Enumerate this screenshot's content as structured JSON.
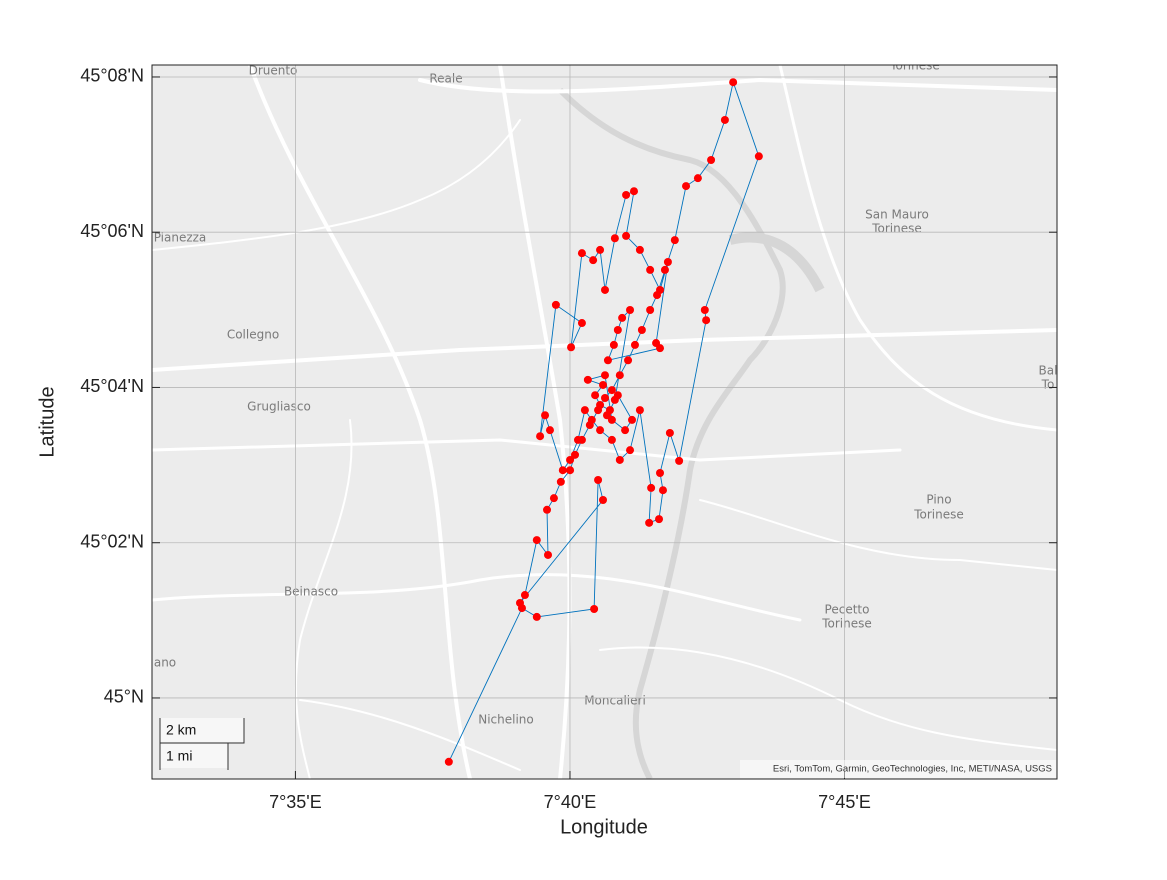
{
  "chart_data": {
    "type": "geoline",
    "xlabel": "Longitude",
    "ylabel": "Latitude",
    "xlim": [
      7.5398,
      7.8145
    ],
    "ylim": [
      44.9826,
      45.1359
    ],
    "xticks": [
      {
        "value": 7.58333,
        "label": "7°35'E"
      },
      {
        "value": 7.66667,
        "label": "7°40'E"
      },
      {
        "value": 7.75,
        "label": "7°45'E"
      }
    ],
    "yticks": [
      {
        "value": 45,
        "label": "45°N"
      },
      {
        "value": 45.03333,
        "label": "45°02'N"
      },
      {
        "value": 45.06667,
        "label": "45°04'N"
      },
      {
        "value": 45.1,
        "label": "45°06'N"
      },
      {
        "value": 45.13333,
        "label": "45°08'N"
      }
    ],
    "grid": true,
    "line_color": "#0072bd",
    "marker_color": "#ff0000",
    "x": [
      7.6299,
      7.6521,
      7.6566,
      7.674,
      7.6752,
      7.6767,
      7.6515,
      7.653,
      7.6566,
      7.66,
      7.6597,
      7.6618,
      7.6639,
      7.6667,
      7.6682,
      7.6703,
      7.6727,
      7.6752,
      7.6773,
      7.6794,
      7.6818,
      7.6843,
      7.6864,
      7.6885,
      7.691,
      7.6931,
      7.6955,
      7.6985,
      7.7019,
      7.7055,
      7.7095,
      7.7137,
      7.7162,
      7.724,
      7.7076,
      7.708,
      7.6998,
      7.697,
      7.694,
      7.6949,
      7.6937,
      7.6907,
      7.6913,
      7.6879,
      7.6849,
      7.6818,
      7.6794,
      7.6758,
      7.6733,
      7.6712,
      7.6691,
      7.6667,
      7.6645,
      7.6606,
      7.6591,
      7.6576,
      7.6624,
      7.6703,
      7.667,
      7.6703,
      7.6737,
      7.6758,
      7.6773,
      7.6803,
      7.6837,
      7.6861,
      7.6837,
      7.6879,
      7.691,
      7.694,
      7.6964,
      7.6928,
      7.694,
      7.6782,
      7.68,
      7.6812,
      7.6825,
      7.6849,
      7.6803,
      7.6788,
      7.6758,
      7.6743,
      7.6767,
      7.6721,
      7.6773,
      7.6794,
      7.6834,
      7.6855,
      7.6812,
      7.6779
    ],
    "y": [
      44.9863,
      45.0193,
      45.0174,
      45.0191,
      45.0468,
      45.0425,
      45.0204,
      45.0221,
      45.0339,
      45.0307,
      45.0404,
      45.0429,
      45.0464,
      45.0489,
      45.0522,
      45.0554,
      45.0586,
      45.0618,
      45.0644,
      45.0661,
      45.0693,
      45.0725,
      45.0758,
      45.079,
      45.0833,
      45.0865,
      45.0919,
      45.0983,
      45.1099,
      45.1116,
      45.1155,
      45.1241,
      45.1322,
      45.1163,
      45.0833,
      45.0811,
      45.0509,
      45.0569,
      45.0483,
      45.0446,
      45.0384,
      45.0376,
      45.0451,
      45.0618,
      45.0532,
      45.0511,
      45.0554,
      45.0575,
      45.0597,
      45.0618,
      45.0554,
      45.0511,
      45.0489,
      45.0575,
      45.0607,
      45.0562,
      45.0844,
      45.0805,
      45.0753,
      45.0955,
      45.094,
      45.0962,
      45.0876,
      45.0987,
      45.108,
      45.1088,
      45.0992,
      45.0962,
      45.0919,
      45.0876,
      45.0936,
      45.0762,
      45.0751,
      45.0725,
      45.0758,
      45.079,
      45.0816,
      45.0833,
      45.064,
      45.0618,
      45.0629,
      45.065,
      45.0672,
      45.0683,
      45.0693,
      45.0597,
      45.0575,
      45.0597,
      45.065,
      45.0607
    ]
  },
  "basemap": {
    "places": [
      [
        "Druento"
      ],
      [
        "Reale"
      ],
      [
        "Torinese"
      ],
      [
        "Pianezza"
      ],
      [
        "Collegno"
      ],
      [
        "Grugliasco"
      ],
      [
        "Beinasco"
      ],
      [
        "ano"
      ],
      [
        "Nichelino"
      ],
      [
        "Moncalieri"
      ],
      [
        "San Mauro",
        "Torinese"
      ],
      [
        "Pino",
        "Torinese"
      ],
      [
        "Pecetto",
        "Torinese"
      ],
      [
        "Bal",
        "To"
      ]
    ],
    "attribution": "Esri, TomTom, Garmin, GeoTechnologies, Inc, METI/NASA, USGS",
    "scalebar": [
      "2 km",
      "1 mi"
    ]
  }
}
